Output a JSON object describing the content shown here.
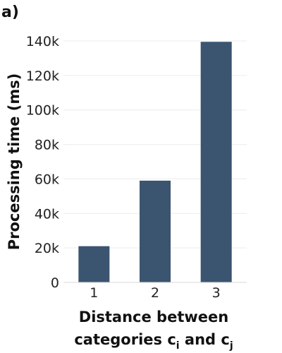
{
  "panel_label": "a)",
  "colors": {
    "bar": "#3b5470",
    "grid": "#ececec",
    "axis": "#d8d8d8"
  },
  "chart_data": {
    "type": "bar",
    "categories": [
      "1",
      "2",
      "3"
    ],
    "values": [
      21000,
      59000,
      139500
    ],
    "ylabel": "Processing time (ms)",
    "xlabel": {
      "line1": "Distance between",
      "line2_prefix": "categories c",
      "line2_sub1": "i",
      "line2_mid": " and c",
      "line2_sub2": "j"
    },
    "ylim": [
      0,
      140000
    ],
    "y_ticks": [
      {
        "value": 0,
        "label": "0"
      },
      {
        "value": 20000,
        "label": "20k"
      },
      {
        "value": 40000,
        "label": "40k"
      },
      {
        "value": 60000,
        "label": "60k"
      },
      {
        "value": 80000,
        "label": "80k"
      },
      {
        "value": 100000,
        "label": "100k"
      },
      {
        "value": 120000,
        "label": "120k"
      },
      {
        "value": 140000,
        "label": "140k"
      }
    ],
    "grid": true,
    "legend": "none"
  }
}
